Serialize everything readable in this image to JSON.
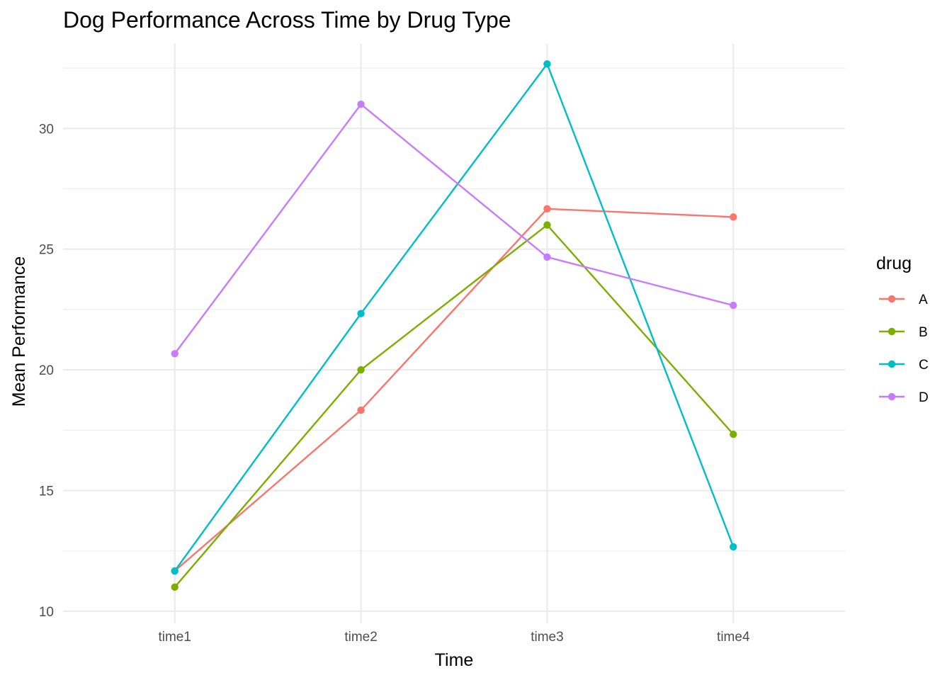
{
  "chart_data": {
    "type": "line",
    "title": "Dog Performance Across Time by Drug Type",
    "xlabel": "Time",
    "ylabel": "Mean Performance",
    "categories": [
      "time1",
      "time2",
      "time3",
      "time4"
    ],
    "ylim": [
      10,
      33
    ],
    "yticks": [
      10,
      15,
      20,
      25,
      30
    ],
    "yticks_minor": [
      12.5,
      17.5,
      22.5,
      27.5,
      32.5
    ],
    "grid": true,
    "legend": {
      "title": "drug",
      "position": "right"
    },
    "series": [
      {
        "name": "A",
        "color": "#F8766D",
        "values": [
          11.67,
          18.33,
          26.67,
          26.33
        ]
      },
      {
        "name": "B",
        "color": "#7CAE00",
        "values": [
          11.0,
          20.0,
          26.0,
          17.33
        ]
      },
      {
        "name": "C",
        "color": "#00BFC4",
        "values": [
          11.67,
          22.33,
          32.67,
          12.67
        ]
      },
      {
        "name": "D",
        "color": "#C77CFF",
        "values": [
          20.67,
          31.0,
          24.67,
          22.67
        ]
      }
    ]
  }
}
